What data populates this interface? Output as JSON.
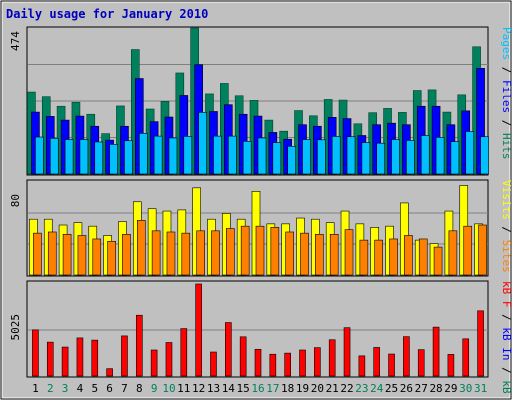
{
  "chart_data": [
    {
      "type": "bar",
      "title": "Daily usage for January 2010",
      "panel": "top",
      "ymax_label": "474",
      "ylim": [
        0,
        474
      ],
      "right_labels": [
        "Pages",
        "Files",
        "Hits"
      ],
      "categories": [
        "1",
        "2",
        "3",
        "4",
        "5",
        "6",
        "7",
        "8",
        "9",
        "10",
        "11",
        "12",
        "13",
        "14",
        "15",
        "16",
        "17",
        "18",
        "19",
        "20",
        "21",
        "22",
        "23",
        "24",
        "25",
        "26",
        "27",
        "28",
        "29",
        "30",
        "31"
      ],
      "weekend_days": [
        "2",
        "3",
        "9",
        "10",
        "16",
        "17",
        "23",
        "24",
        "30",
        "31"
      ],
      "series": [
        {
          "name": "Hits",
          "color": "#00805c",
          "values": [
            266,
            251,
            220,
            233,
            194,
            131,
            221,
            404,
            211,
            236,
            328,
            474,
            260,
            294,
            254,
            239,
            175,
            139,
            206,
            189,
            242,
            240,
            163,
            199,
            213,
            200,
            271,
            273,
            201,
            257,
            413
          ]
        },
        {
          "name": "Files",
          "color": "#0000ff",
          "values": [
            201,
            187,
            175,
            188,
            155,
            110,
            155,
            310,
            170,
            185,
            255,
            355,
            203,
            225,
            194,
            188,
            135,
            113,
            160,
            155,
            184,
            180,
            125,
            160,
            165,
            160,
            220,
            220,
            160,
            205,
            343
          ]
        },
        {
          "name": "Pages",
          "color": "#00c0ff",
          "values": [
            120,
            116,
            112,
            112,
            104,
            96,
            108,
            132,
            123,
            117,
            122,
            200,
            123,
            123,
            106,
            117,
            102,
            90,
            112,
            111,
            122,
            121,
            102,
            100,
            112,
            109,
            125,
            119,
            105,
            138,
            121
          ]
        }
      ]
    },
    {
      "type": "bar",
      "panel": "middle",
      "ymax_label": "80",
      "ylim": [
        0,
        80
      ],
      "right_labels": [
        "Visits",
        "Sites"
      ],
      "series": [
        {
          "name": "Visits",
          "color": "#ffff00",
          "values": [
            48,
            48,
            43,
            45,
            42,
            34,
            46,
            63,
            57,
            55,
            56,
            75,
            48,
            53,
            48,
            72,
            44,
            44,
            49,
            48,
            45,
            55,
            44,
            41,
            42,
            62,
            30,
            27,
            55,
            77,
            44
          ]
        },
        {
          "name": "Sites",
          "color": "#ff8000",
          "values": [
            36,
            37,
            35,
            34,
            31,
            29,
            35,
            47,
            38,
            37,
            36,
            38,
            38,
            40,
            42,
            42,
            41,
            37,
            36,
            35,
            35,
            39,
            30,
            30,
            31,
            34,
            31,
            24,
            38,
            42,
            43
          ]
        }
      ]
    },
    {
      "type": "bar",
      "panel": "bottom",
      "ymax_label": "5025",
      "ylim": [
        0,
        5025
      ],
      "right_labels": [
        "kB F",
        "kB In",
        "kB Out"
      ],
      "series": [
        {
          "name": "kB F",
          "color": "#ff0000",
          "values": [
            2520,
            1850,
            1580,
            2080,
            1960,
            400,
            2190,
            3320,
            1420,
            1830,
            2590,
            5025,
            1310,
            2920,
            2140,
            1460,
            1190,
            1250,
            1420,
            1550,
            1980,
            2640,
            1100,
            1560,
            1200,
            2150,
            1440,
            2670,
            1180,
            2030,
            3560
          ]
        }
      ]
    }
  ],
  "colors": {
    "background": "#ffffff",
    "frame": "#c0c0c0",
    "plot_bg": "#c0c0c0",
    "gridline": "#808080",
    "title": "#0000c0",
    "day_weekday": "#000000",
    "day_weekend": "#00805c"
  }
}
